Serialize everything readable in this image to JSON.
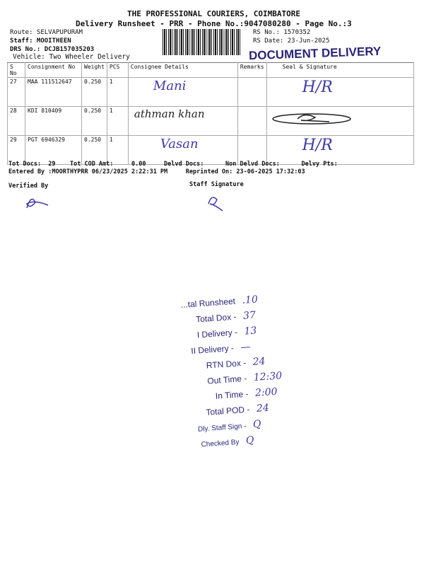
{
  "header": {
    "company": "THE PROFESSIONAL COURIERS, COIMBATORE",
    "subtitle": "Delivery Runsheet - PRR - Phone No.:9047080280 - Page No.:3",
    "route": "Route: SELVAPUPURAM",
    "staff": "Staff: MOOITHEEN",
    "drs": "DRS No.: DCJB157035203",
    "vehicle": "Vehicle: Two Wheeler Delivery",
    "rs_no": "RS No.: 1570352",
    "rs_date": "RS Date: 23-Jun-2025",
    "stamp": "DOCUMENT DELIVERY"
  },
  "table": {
    "columns": [
      "S No",
      "Consignment No",
      "Weight",
      "PCS",
      "Consignee Details",
      "Remarks",
      "Seal & Signature"
    ],
    "rows": [
      {
        "sno": "27",
        "cons": "MAA 111512647",
        "weight": "0.250",
        "pcs": "1",
        "consignee": "Mani",
        "remarks": "",
        "seal": "H/R"
      },
      {
        "sno": "28",
        "cons": "KDI 810409",
        "weight": "0.250",
        "pcs": "1",
        "consignee": "athman khan",
        "remarks": "",
        "seal": ""
      },
      {
        "sno": "29",
        "cons": "PGT 6946329",
        "weight": "0.250",
        "pcs": "1",
        "consignee": "Vasan",
        "remarks": "",
        "seal": "H/R"
      }
    ]
  },
  "footer": {
    "totals": "Tot Docs:  29    Tot COD Amt:     0.00     Delvd Docs:      Non Delvd Docs:      Delvy Pts:",
    "entered": "Entered By :MOORTHYPRR 06/23/2025 2:22:31 PM     Reprinted On: 23-06-2025 17:32:03",
    "verified": "Verified By",
    "staff_sig": "Staff Signature"
  },
  "summary_stamp": [
    {
      "label": "...tal Runsheet",
      "value": ".10"
    },
    {
      "label": "Total Dox -",
      "value": "37"
    },
    {
      "label": "I Delivery -",
      "value": "13"
    },
    {
      "label": "II Delivery -",
      "value": "—"
    },
    {
      "label": "RTN Dox -",
      "value": "24"
    },
    {
      "label": "Out Time -",
      "value": "12:30"
    },
    {
      "label": "In Time -",
      "value": "2:00"
    },
    {
      "label": "Total POD -",
      "value": "24"
    },
    {
      "label": "Dly. Staff Sign -",
      "value": "Q"
    },
    {
      "label": "Checked By",
      "value": "Q"
    }
  ]
}
